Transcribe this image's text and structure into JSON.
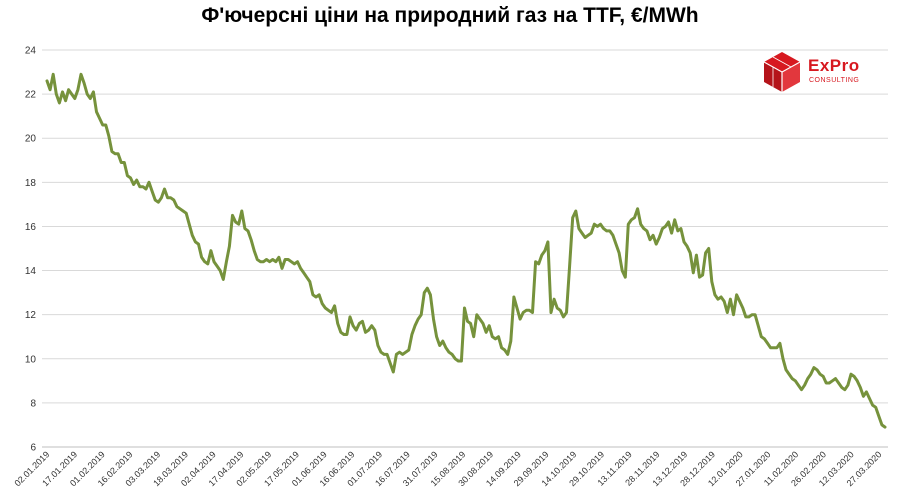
{
  "chart_data": {
    "type": "line",
    "title": "Ф'ючерсні ціни на природний газ на TTF, €/MWh",
    "ylim": [
      6,
      24
    ],
    "yticks": [
      6,
      8,
      10,
      12,
      14,
      16,
      18,
      20,
      22,
      24
    ],
    "grid": "horizontal",
    "line_color": "#76923c",
    "xtick_labels": [
      "02.01.2019",
      "17.01.2019",
      "01.02.2019",
      "16.02.2019",
      "03.03.2019",
      "18.03.2019",
      "02.04.2019",
      "17.04.2019",
      "02.05.2019",
      "17.05.2019",
      "01.06.2019",
      "16.06.2019",
      "01.07.2019",
      "16.07.2019",
      "31.07.2019",
      "15.08.2019",
      "30.08.2019",
      "14.09.2019",
      "29.09.2019",
      "14.10.2019",
      "29.10.2019",
      "13.11.2019",
      "28.11.2019",
      "13.12.2019",
      "28.12.2019",
      "12.01.2020",
      "27.01.2020",
      "11.02.2020",
      "26.02.2020",
      "12.03.2020",
      "27.03.2020"
    ],
    "series": [
      {
        "values": [
          22.6,
          22.2,
          22.9,
          22.0,
          21.6,
          22.1,
          21.7,
          22.2,
          22.0,
          21.8,
          22.2,
          22.9,
          22.5,
          22.0,
          21.8,
          22.1,
          21.2,
          20.9,
          20.6,
          20.6,
          20.1,
          19.4,
          19.3,
          19.3,
          18.9,
          18.9,
          18.3,
          18.2,
          17.9,
          18.1,
          17.8,
          17.8,
          17.7,
          18.0,
          17.6,
          17.2,
          17.1,
          17.3,
          17.7,
          17.3,
          17.3,
          17.2,
          16.9,
          16.8,
          16.7,
          16.6,
          16.1,
          15.6,
          15.3,
          15.2,
          14.6,
          14.4,
          14.3,
          14.9,
          14.4,
          14.2,
          14.0,
          13.6,
          14.4,
          15.1,
          16.5,
          16.2,
          16.1,
          16.7,
          15.9,
          15.8,
          15.4,
          14.9,
          14.5,
          14.4,
          14.4,
          14.5,
          14.4,
          14.5,
          14.4,
          14.6,
          14.1,
          14.5,
          14.5,
          14.4,
          14.3,
          14.4,
          14.1,
          13.9,
          13.7,
          13.5,
          12.9,
          12.8,
          12.9,
          12.5,
          12.3,
          12.2,
          12.1,
          12.4,
          11.6,
          11.2,
          11.1,
          11.1,
          11.9,
          11.5,
          11.3,
          11.6,
          11.7,
          11.2,
          11.3,
          11.5,
          11.3,
          10.6,
          10.3,
          10.2,
          10.2,
          9.8,
          9.4,
          10.2,
          10.3,
          10.2,
          10.3,
          10.4,
          11.1,
          11.5,
          11.8,
          12.0,
          13.0,
          13.2,
          12.9,
          11.8,
          11.0,
          10.6,
          10.8,
          10.5,
          10.3,
          10.2,
          10.0,
          9.9,
          9.9,
          12.3,
          11.7,
          11.6,
          11.0,
          12.0,
          11.8,
          11.6,
          11.2,
          11.5,
          11.0,
          10.9,
          11.0,
          10.5,
          10.4,
          10.2,
          10.8,
          12.8,
          12.3,
          11.8,
          12.1,
          12.2,
          12.2,
          12.1,
          14.4,
          14.3,
          14.7,
          14.9,
          15.3,
          12.1,
          12.7,
          12.3,
          12.2,
          11.9,
          12.1,
          14.2,
          16.4,
          16.7,
          15.9,
          15.7,
          15.5,
          15.6,
          15.7,
          16.1,
          16.0,
          16.1,
          15.9,
          15.8,
          15.8,
          15.6,
          15.2,
          14.8,
          14.0,
          13.7,
          16.1,
          16.3,
          16.4,
          16.8,
          16.1,
          15.9,
          15.8,
          15.4,
          15.6,
          15.2,
          15.5,
          15.9,
          16.0,
          16.2,
          15.7,
          16.3,
          15.8,
          15.9,
          15.3,
          15.1,
          14.8,
          13.9,
          14.7,
          13.7,
          13.8,
          14.8,
          15.0,
          13.5,
          12.9,
          12.7,
          12.8,
          12.6,
          12.1,
          12.7,
          12.0,
          12.9,
          12.6,
          12.3,
          11.9,
          11.9,
          12.0,
          12.0,
          11.5,
          11.0,
          10.9,
          10.7,
          10.5,
          10.5,
          10.5,
          10.7,
          10.0,
          9.5,
          9.3,
          9.1,
          9.0,
          8.8,
          8.6,
          8.8,
          9.1,
          9.3,
          9.6,
          9.5,
          9.3,
          9.2,
          8.9,
          8.9,
          9.0,
          9.1,
          8.9,
          8.7,
          8.6,
          8.8,
          9.3,
          9.2,
          9.0,
          8.7,
          8.3,
          8.5,
          8.2,
          7.9,
          7.8,
          7.4,
          7.0,
          6.9
        ]
      }
    ]
  },
  "logo": {
    "name": "ExPro",
    "sub": "CONSULTING",
    "color": "#d71920"
  }
}
